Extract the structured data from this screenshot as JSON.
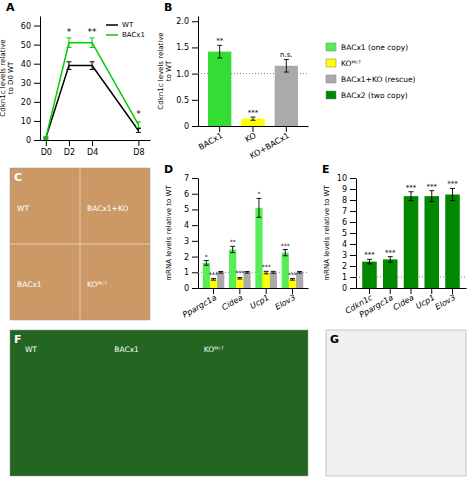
{
  "chart_data": [
    {
      "type": "line",
      "title": "A",
      "x": [
        0,
        2,
        4,
        8
      ],
      "xlim": [
        -0.5,
        9
      ],
      "xticks": [
        {
          "value": 0,
          "label": "D0"
        },
        {
          "value": 2,
          "label": "D2"
        },
        {
          "value": 4,
          "label": "D4"
        },
        {
          "value": 8,
          "label": "D8"
        }
      ],
      "ylabel": "Cdkn1c levels relative\nto D0 WT",
      "ylim": [
        0,
        65
      ],
      "yticks": [
        0,
        10,
        20,
        30,
        40,
        50,
        60
      ],
      "series": [
        {
          "name": "WT",
          "color": "#000000",
          "values": [
            1,
            39,
            39,
            5
          ],
          "errors": [
            0.5,
            2,
            2,
            1
          ]
        },
        {
          "name": "BACx1",
          "color": "#00cc00",
          "values": [
            1,
            51,
            51,
            8
          ],
          "errors": [
            0.5,
            2.5,
            2.5,
            1.5
          ]
        }
      ],
      "annotations": [
        {
          "text": "*",
          "x": 2,
          "y": 55
        },
        {
          "text": "**",
          "x": 4,
          "y": 55
        },
        {
          "text": "*",
          "x": 8,
          "y": 12
        }
      ],
      "legend": "upper right",
      "grid": false
    },
    {
      "type": "bar",
      "title": "B",
      "categories": [
        "BACx1",
        "KO",
        "KO+BACx1"
      ],
      "values": [
        1.42,
        0.14,
        1.15
      ],
      "errors": [
        0.12,
        0.03,
        0.12
      ],
      "colors": [
        "#33dd33",
        "#ffff00",
        "#aaaaaa"
      ],
      "ylabel": "Cdkn1c levels relative\nto WT",
      "ylim": [
        0,
        2.1
      ],
      "yticks": [
        0,
        0.5,
        {
          "value": 1,
          "label": "1.0"
        },
        1.5,
        {
          "value": 2,
          "label": "2.0"
        }
      ],
      "hline": 1.0,
      "annotations": [
        "**",
        "***",
        "n.s."
      ],
      "grid": false
    },
    {
      "type": "legend",
      "series": [
        {
          "name": "BACx1 (one copy)",
          "color": "#55ee55"
        },
        {
          "name": "KOᴹᶜᵀ",
          "color": "#ffff00"
        },
        {
          "name": "BACx1+KO (rescue)",
          "color": "#aaaaaa"
        },
        {
          "name": "BACx2 (two copy)",
          "color": "#008800"
        }
      ]
    },
    {
      "type": "image",
      "title": "C",
      "color": "#cc9966",
      "annotations": [
        "WT",
        "BACx1+KO",
        "BACx1",
        "KOᴹᶜᵀ"
      ]
    },
    {
      "type": "bar",
      "title": "D",
      "categories": [
        "Ppargc1a",
        "Cidea",
        "Ucp1",
        "Elov3"
      ],
      "series": [
        {
          "color": "#55ee55",
          "values": [
            1.6,
            2.45,
            5.1,
            2.25
          ],
          "errors": [
            0.15,
            0.2,
            0.6,
            0.2
          ],
          "annotations": [
            "*",
            "**",
            "*",
            "***"
          ]
        },
        {
          "color": "#ffff00",
          "values": [
            0.55,
            0.62,
            0.98,
            0.55
          ],
          "errors": [
            0.05,
            0.05,
            0.08,
            0.05
          ],
          "annotations": [
            "***",
            "***",
            "***",
            "***"
          ]
        },
        {
          "color": "#aaaaaa",
          "values": [
            1.0,
            1.0,
            1.0,
            1.0
          ],
          "errors": [
            0.05,
            0.05,
            0.06,
            0.05
          ]
        }
      ],
      "ylabel": "mRNA levels relative to WT",
      "ylim": [
        0,
        7
      ],
      "yticks": [
        0,
        1,
        2,
        3,
        4,
        5,
        6,
        7
      ],
      "hline": 1.0,
      "grid": false
    },
    {
      "type": "bar",
      "title": "E",
      "categories": [
        "Cdkn1c",
        "Ppargc1a",
        "Cidea",
        "Ucp1",
        "Elov3"
      ],
      "values": [
        2.4,
        2.6,
        8.35,
        8.35,
        8.5
      ],
      "errors": [
        0.2,
        0.25,
        0.4,
        0.5,
        0.55
      ],
      "color": "#008800",
      "ylabel": "mRNA levels relative to WT",
      "ylim": [
        0,
        10
      ],
      "yticks": [
        0,
        1,
        2,
        3,
        4,
        5,
        6,
        7,
        8,
        9,
        10
      ],
      "hline": 1.0,
      "annotations": [
        "***",
        "***",
        "***",
        "***",
        "***"
      ],
      "grid": false
    },
    {
      "type": "image",
      "title": "F",
      "color": "#226622",
      "annotations": [
        "WT",
        "BACx1",
        "KOᴹᶜᵀ"
      ]
    },
    {
      "type": "image",
      "title": "G",
      "color": "#f0f0f0"
    }
  ]
}
